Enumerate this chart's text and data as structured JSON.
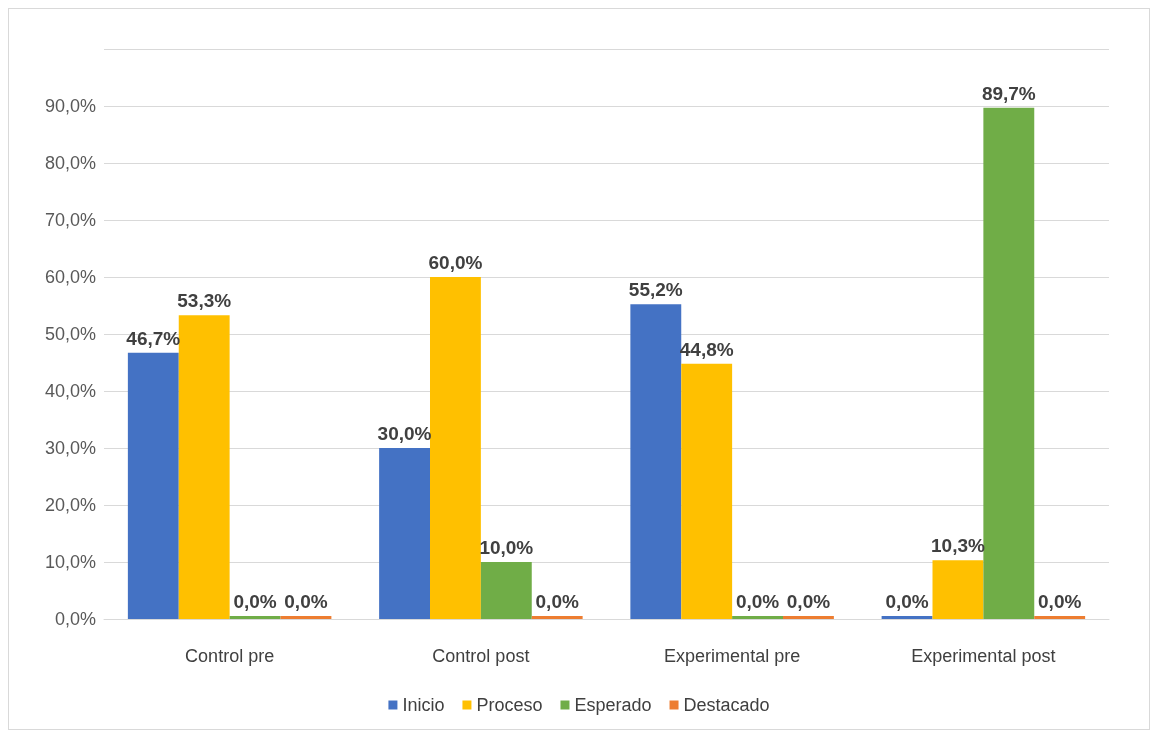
{
  "chart_data": {
    "type": "bar",
    "categories": [
      "Control pre",
      "Control post",
      "Experimental pre",
      "Experimental post"
    ],
    "series": [
      {
        "name": "Inicio",
        "color": "#4472c4",
        "values": [
          46.7,
          30.0,
          55.2,
          0.0
        ],
        "value_labels": [
          "46,7%",
          "30,0%",
          "55,2%",
          "0,0%"
        ]
      },
      {
        "name": "Proceso",
        "color": "#ffc000",
        "values": [
          53.3,
          60.0,
          44.8,
          10.3
        ],
        "value_labels": [
          "53,3%",
          "60,0%",
          "44,8%",
          "10,3%"
        ]
      },
      {
        "name": "Esperado",
        "color": "#70ad47",
        "values": [
          0.0,
          10.0,
          0.0,
          89.7
        ],
        "value_labels": [
          "0,0%",
          "10,0%",
          "0,0%",
          "89,7%"
        ]
      },
      {
        "name": "Destacado",
        "color": "#ed7d31",
        "values": [
          0.0,
          0.0,
          0.0,
          0.0
        ],
        "value_labels": [
          "0,0%",
          "0,0%",
          "0,0%",
          "0,0%"
        ]
      }
    ],
    "ylim": [
      0,
      100
    ],
    "yticks": [
      {
        "value": 0,
        "label": "0,0%"
      },
      {
        "value": 10,
        "label": "10,0%"
      },
      {
        "value": 20,
        "label": "20,0%"
      },
      {
        "value": 30,
        "label": "30,0%"
      },
      {
        "value": 40,
        "label": "40,0%"
      },
      {
        "value": 50,
        "label": "50,0%"
      },
      {
        "value": 60,
        "label": "60,0%"
      },
      {
        "value": 70,
        "label": "70,0%"
      },
      {
        "value": 80,
        "label": "80,0%"
      },
      {
        "value": 90,
        "label": "90,0%"
      },
      {
        "value": 100,
        "label": null
      }
    ],
    "grid": "y",
    "legend": "bottom"
  }
}
